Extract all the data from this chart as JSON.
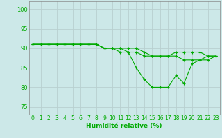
{
  "title": "",
  "xlabel": "Humidité relative (%)",
  "ylabel": "",
  "bg_color": "#cce8e8",
  "grid_color": "#b8d0d0",
  "line_color": "#00aa00",
  "spine_color": "#888888",
  "xlim": [
    -0.5,
    23.5
  ],
  "ylim": [
    73,
    102
  ],
  "yticks": [
    75,
    80,
    85,
    90,
    95,
    100
  ],
  "xticks": [
    0,
    1,
    2,
    3,
    4,
    5,
    6,
    7,
    8,
    9,
    10,
    11,
    12,
    13,
    14,
    15,
    16,
    17,
    18,
    19,
    20,
    21,
    22,
    23
  ],
  "series": [
    [
      91,
      91,
      91,
      91,
      91,
      91,
      91,
      91,
      91,
      90,
      90,
      90,
      89,
      89,
      88,
      88,
      88,
      88,
      88,
      87,
      87,
      87,
      88,
      88
    ],
    [
      91,
      91,
      91,
      91,
      91,
      91,
      91,
      91,
      91,
      90,
      90,
      90,
      90,
      90,
      89,
      88,
      88,
      88,
      89,
      89,
      89,
      89,
      88,
      88
    ],
    [
      91,
      91,
      91,
      91,
      91,
      91,
      91,
      91,
      91,
      90,
      90,
      89,
      89,
      85,
      82,
      80,
      80,
      80,
      83,
      81,
      86,
      87,
      87,
      88
    ]
  ]
}
